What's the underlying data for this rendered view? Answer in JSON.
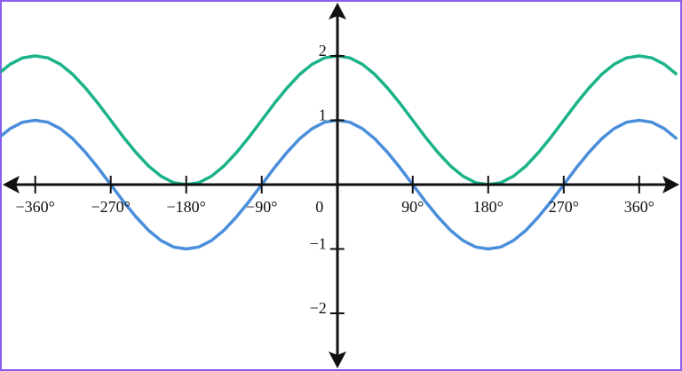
{
  "chart_data": {
    "type": "line",
    "x": [
      -405,
      -390,
      -375,
      -360,
      -345,
      -330,
      -315,
      -300,
      -285,
      -270,
      -255,
      -240,
      -225,
      -210,
      -195,
      -180,
      -165,
      -150,
      -135,
      -120,
      -105,
      -90,
      -75,
      -60,
      -45,
      -30,
      -15,
      0,
      15,
      30,
      45,
      60,
      75,
      90,
      105,
      120,
      135,
      150,
      165,
      180,
      195,
      210,
      225,
      240,
      255,
      270,
      285,
      300,
      315,
      330,
      345,
      360,
      375,
      390,
      405
    ],
    "series": [
      {
        "color": "#1bb38a",
        "values": [
          1.71,
          1.87,
          1.97,
          2,
          1.97,
          1.87,
          1.71,
          1.5,
          1.26,
          1,
          0.74,
          0.5,
          0.29,
          0.13,
          0.03,
          0,
          0.03,
          0.13,
          0.29,
          0.5,
          0.74,
          1,
          1.26,
          1.5,
          1.71,
          1.87,
          1.97,
          2,
          1.97,
          1.87,
          1.71,
          1.5,
          1.26,
          1,
          0.74,
          0.5,
          0.29,
          0.13,
          0.03,
          0,
          0.03,
          0.13,
          0.29,
          0.5,
          0.74,
          1,
          1.26,
          1.5,
          1.71,
          1.87,
          1.97,
          2,
          1.97,
          1.87,
          1.71
        ]
      },
      {
        "color": "#4a8edb",
        "values": [
          0.71,
          0.87,
          0.97,
          1,
          0.97,
          0.87,
          0.71,
          0.5,
          0.26,
          0,
          -0.26,
          -0.5,
          -0.71,
          -0.87,
          -0.97,
          -1,
          -0.97,
          -0.87,
          -0.71,
          -0.5,
          -0.26,
          0,
          0.26,
          0.5,
          0.71,
          0.87,
          0.97,
          1,
          0.97,
          0.87,
          0.71,
          0.5,
          0.26,
          0,
          -0.26,
          -0.5,
          -0.71,
          -0.87,
          -0.97,
          -1,
          -0.97,
          -0.87,
          -0.71,
          -0.5,
          -0.26,
          0,
          0.26,
          0.5,
          0.71,
          0.87,
          0.97,
          1,
          0.97,
          0.87,
          0.71
        ]
      }
    ],
    "xlim": [
      -402,
      411
    ],
    "ylim": [
      -2.8,
      2.8
    ],
    "xticks": [
      {
        "value": -360,
        "label": "−360°"
      },
      {
        "value": -270,
        "label": "−270°"
      },
      {
        "value": -180,
        "label": "−180°"
      },
      {
        "value": -90,
        "label": "−90°"
      },
      0,
      {
        "value": 90,
        "label": "90°"
      },
      {
        "value": 180,
        "label": "180°"
      },
      {
        "value": 270,
        "label": "270°"
      },
      {
        "value": 360,
        "label": "360°"
      }
    ],
    "yticks": [
      {
        "value": -2,
        "label": "−2"
      },
      {
        "value": -1,
        "label": "−1"
      },
      1,
      2
    ]
  }
}
